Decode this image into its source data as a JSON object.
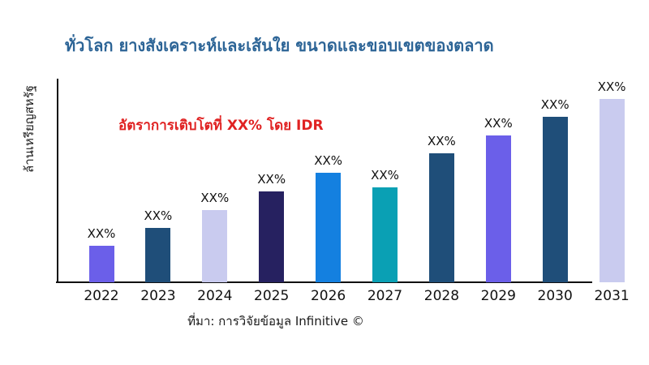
{
  "page": {
    "title": "ทั่วโลก ยางสังเคราะห์และเส้นใย ขนาดและขอบเขตของตลาด",
    "annotation": "อัตราการเติบโตที่ XX% โดย IDR",
    "source": "ที่มา: การวิจัยข้อมูล Infinitive ©"
  },
  "colors": {
    "title_text": "#2c6496",
    "annotation_text": "#e02222",
    "axis": "#111111",
    "label_text": "#111111",
    "background": "#ffffff"
  },
  "chart_data": {
    "type": "bar",
    "title": "ทั่วโลก ยางสังเคราะห์และเส้นใย ขนาดและขอบเขตของตลาด",
    "xlabel": "",
    "ylabel": "ล้านเหรียญสหรัฐ",
    "categories": [
      "2022",
      "2023",
      "2024",
      "2025",
      "2026",
      "2027",
      "2028",
      "2029",
      "2030",
      "2031"
    ],
    "value_labels": [
      "XX%",
      "XX%",
      "XX%",
      "XX%",
      "XX%",
      "XX%",
      "XX%",
      "XX%",
      "XX%",
      "XX%"
    ],
    "values_relative": [
      45,
      67,
      89,
      112,
      135,
      117,
      159,
      181,
      204,
      226
    ],
    "bar_colors": [
      "#6b5fe9",
      "#1f4e79",
      "#c9cbef",
      "#262160",
      "#1480e0",
      "#0aa0b4",
      "#1f4e79",
      "#6b5fe9",
      "#1f4e79",
      "#c9cbef"
    ],
    "annotation": "อัตราการเติบโตที่ XX% โดย IDR",
    "grid": false,
    "legend": false
  }
}
